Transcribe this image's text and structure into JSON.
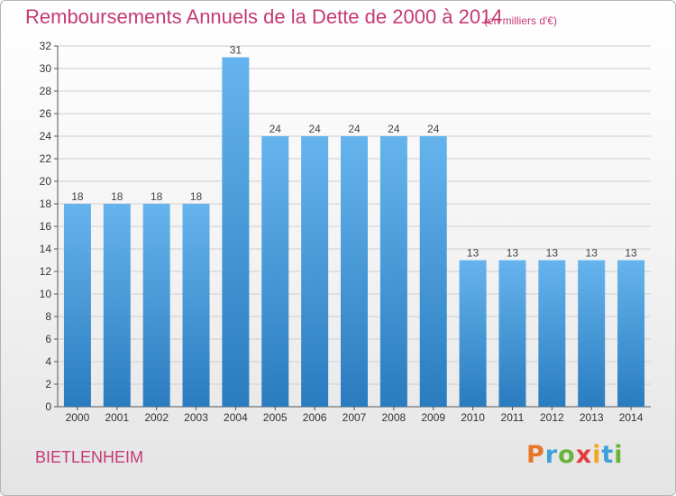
{
  "title": "Remboursements Annuels de la Dette de 2000 à 2014",
  "unit_note": "(en milliers d'€)",
  "commune": "BIETLENHEIM",
  "logo_text": "Proxiti",
  "colors": {
    "title": "#c43a74",
    "bar_top": "#66b4ee",
    "bar_bottom": "#2a7cbf",
    "grid": "#cfcfcf"
  },
  "chart_data": {
    "type": "bar",
    "categories": [
      "2000",
      "2001",
      "2002",
      "2003",
      "2004",
      "2005",
      "2006",
      "2007",
      "2008",
      "2009",
      "2010",
      "2011",
      "2012",
      "2013",
      "2014"
    ],
    "values": [
      18,
      18,
      18,
      18,
      31,
      24,
      24,
      24,
      24,
      24,
      13,
      13,
      13,
      13,
      13
    ],
    "title": "Remboursements Annuels de la Dette de 2000 à 2014",
    "xlabel": "",
    "ylabel": "",
    "ylim": [
      0,
      32
    ],
    "y_ticks": [
      0,
      2,
      4,
      6,
      8,
      10,
      12,
      14,
      16,
      18,
      20,
      22,
      24,
      26,
      28,
      30,
      32
    ],
    "grid": true,
    "data_labels": true
  }
}
